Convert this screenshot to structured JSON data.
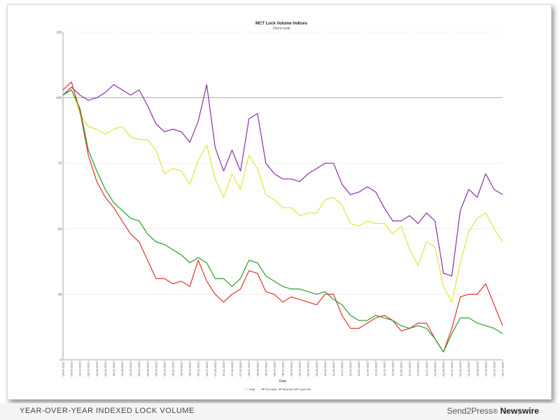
{
  "chart_data": {
    "type": "line",
    "title": "MCT Lock Volume Indices",
    "subtitle": "Client code",
    "xlabel": "Date",
    "ylabel": "",
    "ylim": [
      0,
      125
    ],
    "yticks": [
      0,
      25,
      50,
      75,
      100,
      125
    ],
    "reference_lines": [
      100
    ],
    "grid": true,
    "legend_position": "bottom",
    "x": [
      "03-01-2022",
      "03-07-2022",
      "03-14-2022",
      "03-21-2022",
      "03-28-2022",
      "04-04-2022",
      "04-11-2022",
      "04-18-2022",
      "04-25-2022",
      "05-02-2022",
      "05-09-2022",
      "05-16-2022",
      "05-23-2022",
      "05-31-2022",
      "06-06-2022",
      "06-13-2022",
      "06-21-2022",
      "06-27-2022",
      "07-05-2022",
      "07-11-2022",
      "07-18-2022",
      "07-25-2022",
      "08-01-2022",
      "08-08-2022",
      "08-15-2022",
      "08-22-2022",
      "08-29-2022",
      "09-06-2022",
      "09-12-2022",
      "09-19-2022",
      "09-26-2022",
      "10-03-2022",
      "10-10-2022",
      "10-17-2022",
      "10-24-2022",
      "10-31-2022",
      "11-07-2022",
      "11-14-2022",
      "11-21-2022",
      "11-28-2022",
      "12-05-2022",
      "12-12-2022",
      "12-19-2022",
      "12-27-2022",
      "01-03-2023",
      "01-09-2023",
      "01-17-2023",
      "01-23-2023",
      "01-30-2023",
      "02-06-2023",
      "02-13-2023",
      "02-21-2023",
      "02-27-2023"
    ],
    "series": [
      {
        "name": "Total",
        "color": "#e3e33a",
        "values": [
          101,
          103,
          94,
          89,
          88,
          86,
          88,
          89,
          85,
          84,
          84,
          80,
          71,
          73,
          72,
          67,
          76,
          82,
          69,
          62,
          71,
          65,
          78,
          73,
          63,
          61,
          58,
          58,
          55,
          56,
          56,
          61,
          62,
          59,
          52,
          51,
          53,
          52,
          52,
          48,
          51,
          42,
          36,
          45,
          43,
          28,
          22,
          37,
          49,
          54,
          56,
          50,
          45
        ]
      },
      {
        "name": "Purchase",
        "color": "#8b2fa8",
        "values": [
          101,
          104,
          101,
          99,
          100,
          102,
          105,
          103,
          101,
          103,
          97,
          90,
          87,
          88,
          87,
          83,
          91,
          105,
          81,
          72,
          80,
          72,
          92,
          94,
          75,
          71,
          69,
          69,
          68,
          71,
          73,
          75,
          75,
          67,
          63,
          64,
          66,
          64,
          58,
          53,
          53,
          55,
          52,
          56,
          53,
          33,
          32,
          57,
          65,
          62,
          71,
          65,
          63
        ]
      },
      {
        "name": "Rate/Term",
        "color": "#e0332b",
        "values": [
          103,
          106,
          95,
          78,
          68,
          62,
          58,
          53,
          48,
          45,
          38,
          31,
          31,
          29,
          30,
          28,
          38,
          30,
          25,
          22,
          25,
          27,
          34,
          33,
          26,
          25,
          22,
          24,
          23,
          22,
          21,
          25,
          25,
          17,
          12,
          12,
          14,
          16,
          17,
          15,
          11,
          12,
          14,
          14,
          8,
          3,
          12,
          24,
          25,
          25,
          29,
          21,
          13
        ]
      },
      {
        "name": "Cash Out",
        "color": "#2c9b2c",
        "values": [
          101,
          103,
          96,
          80,
          72,
          65,
          60,
          57,
          54,
          53,
          48,
          45,
          44,
          42,
          40,
          37,
          39,
          37,
          31,
          31,
          28,
          31,
          38,
          37,
          32,
          30,
          28,
          27,
          27,
          26,
          25,
          26,
          23,
          21,
          17,
          15,
          15,
          17,
          16,
          15,
          13,
          12,
          13,
          12,
          8,
          3,
          10,
          16,
          16,
          14,
          13,
          12,
          10
        ]
      }
    ]
  },
  "footer": {
    "caption": "YEAR-OVER-YEAR INDEXED LOCK VOLUME",
    "brand": "Send2Press",
    "brand_mark": "®",
    "brand_suffix": "Newswire"
  }
}
